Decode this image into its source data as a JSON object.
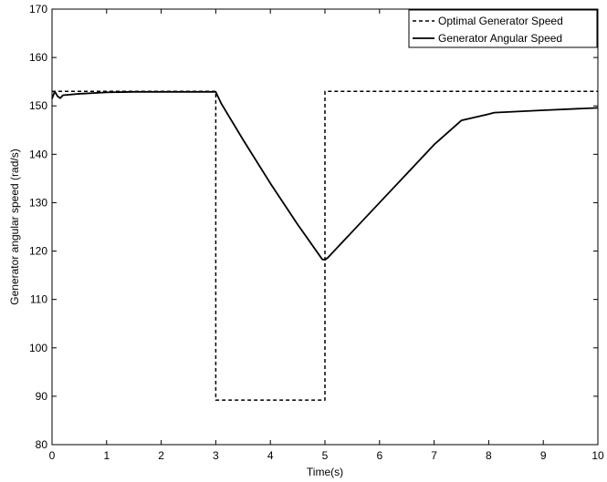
{
  "chart_data": {
    "type": "line",
    "title": "",
    "xlabel": "Time(s)",
    "ylabel": "Generator angular speed (rad/s)",
    "xlim": [
      0,
      10
    ],
    "ylim": [
      80,
      170
    ],
    "xticks": [
      0,
      1,
      2,
      3,
      4,
      5,
      6,
      7,
      8,
      9,
      10
    ],
    "yticks": [
      80,
      90,
      100,
      110,
      120,
      130,
      140,
      150,
      160,
      170
    ],
    "grid": false,
    "legend_position": "top-right",
    "series": [
      {
        "name": "Optimal Generator Speed",
        "style": "dashed",
        "color": "#000000",
        "x": [
          0,
          3,
          3,
          5,
          5,
          10
        ],
        "y": [
          153,
          153,
          89.2,
          89.2,
          153,
          153
        ]
      },
      {
        "name": "Generator Angular Speed",
        "style": "solid",
        "color": "#000000",
        "x": [
          0,
          0.05,
          0.1,
          0.15,
          0.2,
          0.3,
          0.5,
          1,
          1.5,
          2,
          2.5,
          3,
          3.1,
          3.5,
          4,
          4.5,
          4.95,
          5,
          5.05,
          5.5,
          6,
          6.5,
          7,
          7.5,
          8,
          8.1,
          9,
          10
        ],
        "y": [
          151.5,
          153,
          152,
          151.6,
          152.2,
          152.3,
          152.5,
          152.8,
          152.9,
          152.9,
          152.9,
          152.9,
          150.5,
          143,
          134,
          125.5,
          118.3,
          118.2,
          118.6,
          124,
          130,
          136,
          142,
          147,
          148.3,
          148.6,
          149.1,
          149.6
        ]
      }
    ]
  }
}
